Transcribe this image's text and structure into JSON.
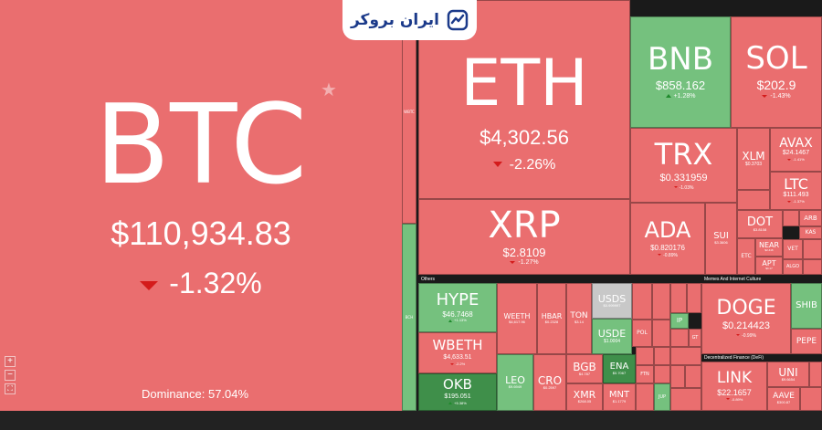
{
  "brand": {
    "name": "ایران بروکر"
  },
  "dominance": {
    "label": "Dominance: 57.04%"
  },
  "sections": {
    "others": "Others",
    "memes": "Memes And Internet Culture",
    "defi": "Decentralized Finance (DeFi)"
  },
  "zoom": {
    "plus": "+",
    "minus": "−",
    "fit": "⛶"
  },
  "colors": {
    "down": "#ea6e6f",
    "up": "#75c17e",
    "strong_up": "#3f8f4a",
    "neutral": "#c8c8c8",
    "down_arrow": "#d41b1b"
  },
  "coins": {
    "btc": {
      "symbol": "BTC",
      "price": "$110,934.83",
      "change": "-1.32%"
    },
    "eth": {
      "symbol": "ETH",
      "price": "$4,302.56",
      "change": "-2.26%"
    },
    "bnb": {
      "symbol": "BNB",
      "price": "$858.162",
      "change": "+1.28%"
    },
    "sol": {
      "symbol": "SOL",
      "price": "$202.9",
      "change": "-1.43%"
    },
    "xrp": {
      "symbol": "XRP",
      "price": "$2.8109",
      "change": "-1.27%"
    },
    "trx": {
      "symbol": "TRX",
      "price": "$0.331959",
      "change": "-1.03%"
    },
    "ada": {
      "symbol": "ADA",
      "price": "$0.820176",
      "change": "-0.89%"
    },
    "sui": {
      "symbol": "SUI",
      "price": "$3.3606"
    },
    "xlm": {
      "symbol": "XLM",
      "price": "$0.3703"
    },
    "avax": {
      "symbol": "AVAX",
      "price": "$24.1467",
      "change": "-1.41%"
    },
    "ltc": {
      "symbol": "LTC",
      "price": "$111.493",
      "change": "-1.37%"
    },
    "dot": {
      "symbol": "DOT",
      "price": "$3.8108"
    },
    "near": {
      "symbol": "NEAR",
      "price": "$2.416"
    },
    "apt": {
      "symbol": "APT",
      "price": "$4.17"
    },
    "etc": {
      "symbol": "ETC"
    },
    "arb": {
      "symbol": "ARB"
    },
    "kas": {
      "symbol": "KAS"
    },
    "vet": {
      "symbol": "VET"
    },
    "algo": {
      "symbol": "ALGO"
    },
    "hype": {
      "symbol": "HYPE",
      "price": "$46.7468",
      "change": "+1.13%"
    },
    "weeth": {
      "symbol": "WEETH",
      "price": "$4,617.96"
    },
    "hbar": {
      "symbol": "HBAR",
      "price": "$0.2328"
    },
    "ton": {
      "symbol": "TON",
      "price": "$3.14"
    },
    "usds": {
      "symbol": "USDS",
      "price": "$0.999997"
    },
    "usde": {
      "symbol": "USDE",
      "price": "$1.0004"
    },
    "wbeth": {
      "symbol": "WBETH",
      "price": "$4,633.51",
      "change": "-2.2%"
    },
    "okb": {
      "symbol": "OKB",
      "price": "$195.051",
      "change": "+5.38%"
    },
    "leo": {
      "symbol": "LEO",
      "price": "$9.6949"
    },
    "cro": {
      "symbol": "CRO",
      "price": "$0.2597"
    },
    "bgb": {
      "symbol": "BGB",
      "price": "$4.787"
    },
    "ena": {
      "symbol": "ENA",
      "price": "$0.7067"
    },
    "xmr": {
      "symbol": "XMR",
      "price": "$268.05"
    },
    "mnt": {
      "symbol": "MNT",
      "price": "$1.1779"
    },
    "pol": {
      "symbol": "POL"
    },
    "ftn": {
      "symbol": "FTN"
    },
    "jup": {
      "symbol": "JUP"
    },
    "ip": {
      "symbol": "IP"
    },
    "gt": {
      "symbol": "GT"
    },
    "wbtc": {
      "symbol": "WBTC"
    },
    "bch": {
      "symbol": "BCH"
    },
    "doge": {
      "symbol": "DOGE",
      "price": "$0.214423",
      "change": "-0.99%"
    },
    "shib": {
      "symbol": "SHIB"
    },
    "pepe": {
      "symbol": "PEPE"
    },
    "link": {
      "symbol": "LINK",
      "price": "$22.1657",
      "change": "-0.89%"
    },
    "uni": {
      "symbol": "UNI",
      "price": "$9.6654"
    },
    "aave": {
      "symbol": "AAVE",
      "price": "$300.87"
    }
  }
}
